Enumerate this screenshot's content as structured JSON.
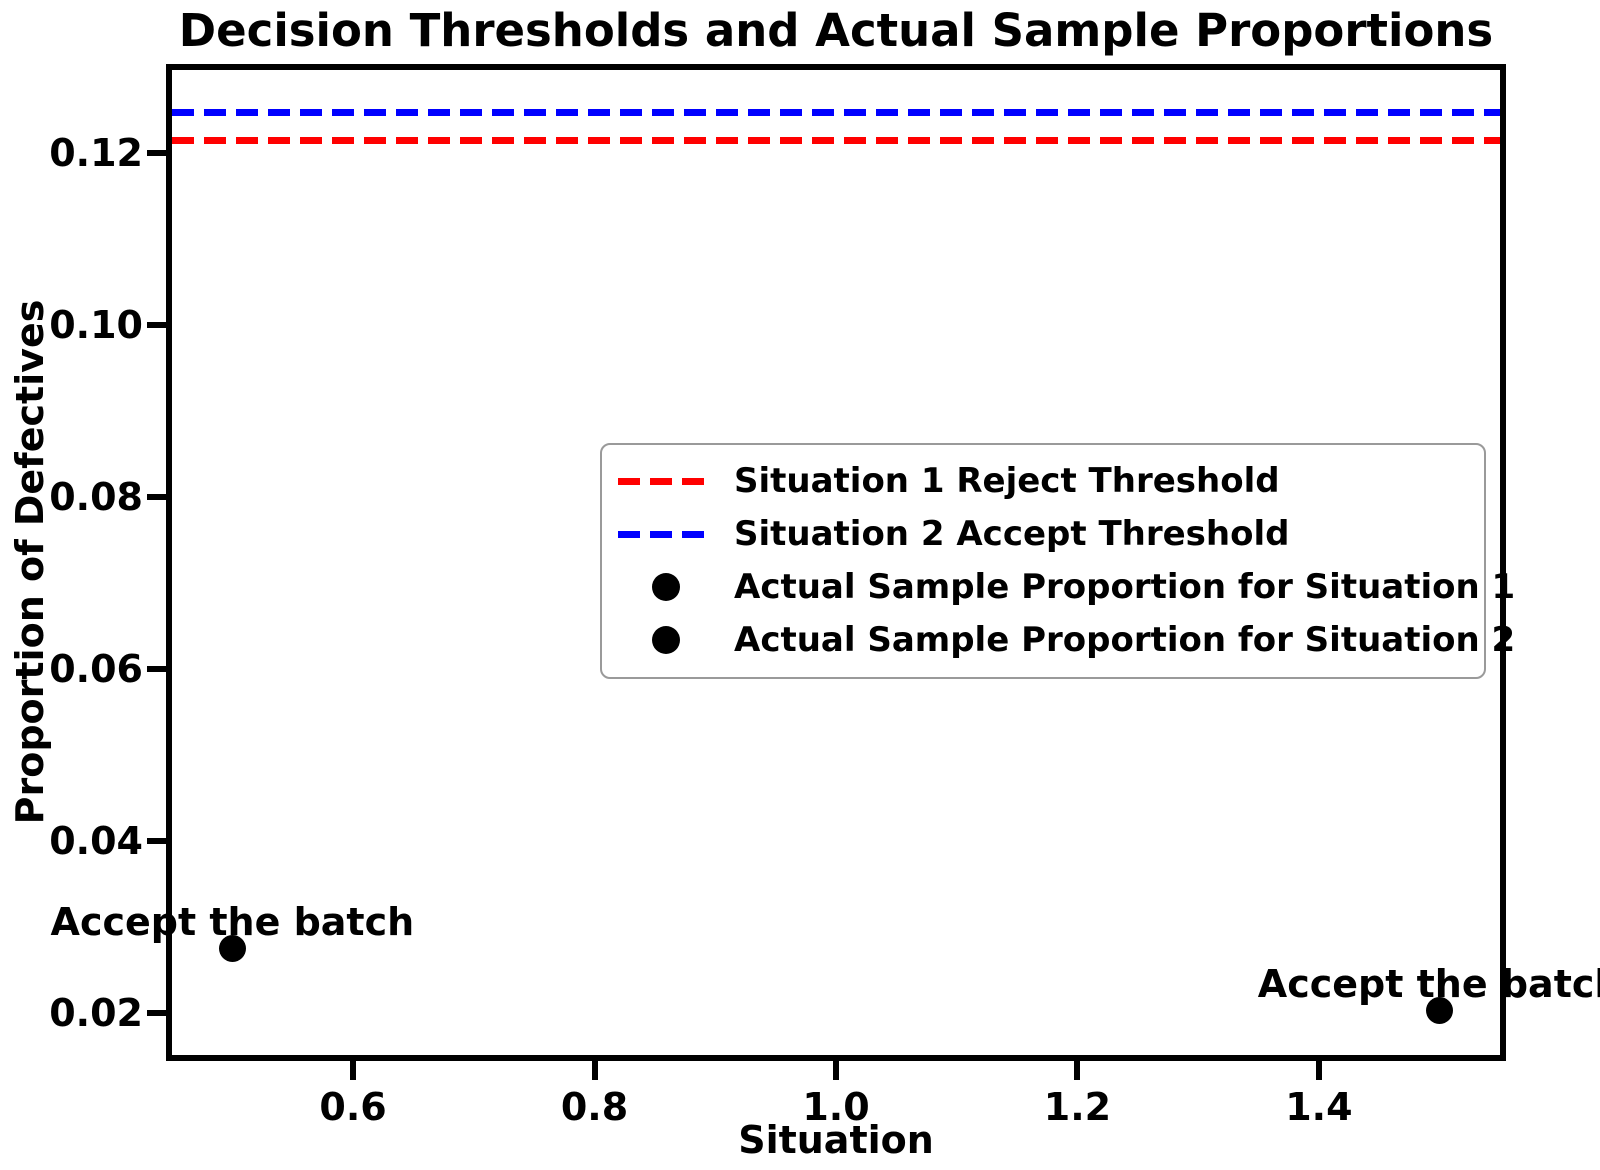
{
  "chart_data": {
    "type": "scatter",
    "title": "Decision Thresholds and Actual Sample Proportions",
    "xlabel": "Situation",
    "ylabel": "Proportion of Defectives",
    "xlim": [
      0.45,
      1.55
    ],
    "ylim": [
      0.0151,
      0.1297
    ],
    "grid": false,
    "legend_position": "center right",
    "x_ticks": [
      {
        "value": 0.6,
        "label": "0.6"
      },
      {
        "value": 0.8,
        "label": "0.8"
      },
      {
        "value": 1.0,
        "label": "1.0"
      },
      {
        "value": 1.2,
        "label": "1.2"
      },
      {
        "value": 1.4,
        "label": "1.4"
      }
    ],
    "y_ticks": [
      {
        "value": 0.02,
        "label": "0.02"
      },
      {
        "value": 0.04,
        "label": "0.04"
      },
      {
        "value": 0.06,
        "label": "0.06"
      },
      {
        "value": 0.08,
        "label": "0.08"
      },
      {
        "value": 0.1,
        "label": "0.10"
      },
      {
        "value": 0.12,
        "label": "0.12"
      }
    ],
    "hlines": [
      {
        "name": "Situation 1 Reject Threshold",
        "value": 0.1215,
        "color": "#ff0000",
        "style": "dashed"
      },
      {
        "name": "Situation 2 Accept Threshold",
        "value": 0.1248,
        "color": "#0000ff",
        "style": "dashed"
      }
    ],
    "points": [
      {
        "name": "Actual Sample Proportion for Situation 1",
        "x": 0.5,
        "y": 0.0275,
        "color": "#000000",
        "annotation": "Accept the batch"
      },
      {
        "name": "Actual Sample Proportion for Situation 2",
        "x": 1.5,
        "y": 0.0203,
        "color": "#000000",
        "annotation": "Accept the batch"
      }
    ],
    "legend": [
      {
        "label": "Situation 1 Reject Threshold",
        "marker": "dashed-line",
        "color": "#ff0000"
      },
      {
        "label": "Situation 2 Accept Threshold",
        "marker": "dashed-line",
        "color": "#0000ff"
      },
      {
        "label": "Actual Sample Proportion for Situation 1",
        "marker": "dot",
        "color": "#000000"
      },
      {
        "label": "Actual Sample Proportion for Situation 2",
        "marker": "dot",
        "color": "#000000"
      }
    ]
  }
}
